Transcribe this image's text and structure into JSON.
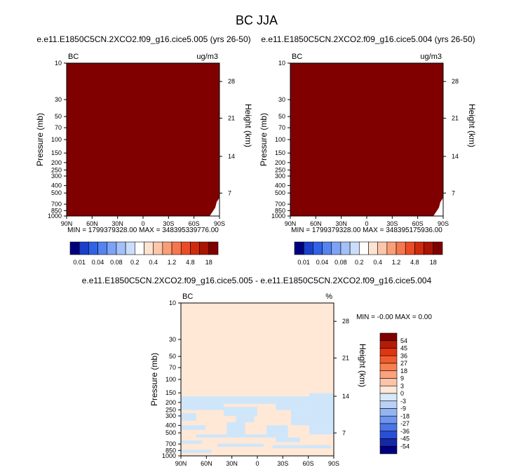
{
  "figure_title": "BC JJA",
  "colors": {
    "dark_red": "#800000",
    "diff_fill": "#FFE8D6",
    "diff_blue": "#CFE6FA",
    "axis": "#000000",
    "page_bg": "#ffffff"
  },
  "chart_data": [
    {
      "type": "heatmap",
      "title": "e.e11.E1850C5CN.2XCO2.f09_g16.cice5.005 (yrs 26-50)",
      "left_label": "BC",
      "right_label": "ug/m3",
      "ylabel": "Pressure (mb)",
      "y2label": "Height (km)",
      "x_ticks": [
        "90N",
        "60N",
        "30N",
        "0",
        "30S",
        "60S",
        "90S"
      ],
      "y_ticks": [
        "10",
        "30",
        "50",
        "70",
        "100",
        "150",
        "200",
        "250",
        "300",
        "400",
        "500",
        "700",
        "850",
        "1000"
      ],
      "height_ticks": [
        "28",
        "21",
        "14",
        "7"
      ],
      "min_max_text": "MIN = 1799379328.00   MAX = 348395339776.00",
      "field": "uniform dark red (all values above 18)"
    },
    {
      "type": "heatmap",
      "title": "e.e11.E1850C5CN.2XCO2.f09_g16.cice5.004 (yrs 26-50)",
      "left_label": "BC",
      "right_label": "ug/m3",
      "ylabel": "Pressure (mb)",
      "y2label": "Height (km)",
      "x_ticks": [
        "90N",
        "60N",
        "30N",
        "0",
        "30S",
        "60S",
        "90S"
      ],
      "y_ticks": [
        "10",
        "30",
        "50",
        "70",
        "100",
        "150",
        "200",
        "250",
        "300",
        "400",
        "500",
        "700",
        "850",
        "1000"
      ],
      "height_ticks": [
        "28",
        "21",
        "14",
        "7"
      ],
      "min_max_text": "MIN = 1799379328.00   MAX = 348395175936.00",
      "field": "uniform dark red (all values above 18)"
    },
    {
      "type": "heatmap",
      "title": "e.e11.E1850C5CN.2XCO2.f09_g16.cice5.005 - e.e11.E1850C5CN.2XCO2.f09_g16.cice5.004",
      "left_label": "BC",
      "right_label": "%",
      "ylabel": "Pressure (mb)",
      "y2label": "Height (km)",
      "x_ticks": [
        "90N",
        "60N",
        "30N",
        "0",
        "30S",
        "60S",
        "90S"
      ],
      "y_ticks": [
        "10",
        "30",
        "50",
        "70",
        "100",
        "150",
        "200",
        "250",
        "300",
        "400",
        "500",
        "700",
        "850",
        "1000"
      ],
      "height_ticks": [
        "28",
        "21",
        "14",
        "7"
      ],
      "min_max_text": "MIN = -0.00   MAX =   0.00",
      "field": "0 to 3 above ~150 mb; mixture of 0 to 3 and -3 to 0 below ~150 mb"
    }
  ],
  "colorbar_top": {
    "labels": [
      "0.01",
      "0.04",
      "0.08",
      "0.2",
      "0.4",
      "1.2",
      "4.8",
      "18"
    ],
    "colors": [
      "#00007F",
      "#1A3FC9",
      "#2F62E6",
      "#5583F0",
      "#7CA3F4",
      "#A3C1F7",
      "#CADDFB",
      "#FFFFFF",
      "#FFE3D2",
      "#FCC6A8",
      "#FA9E78",
      "#F5774F",
      "#EB4C28",
      "#CF2A0E",
      "#A91404",
      "#7F0000"
    ]
  },
  "colorbar_diff": {
    "labels": [
      "54",
      "45",
      "36",
      "27",
      "18",
      "9",
      "3",
      "0",
      "-3",
      "-9",
      "-18",
      "-27",
      "-36",
      "-45",
      "-54"
    ],
    "colors": [
      "#7F0000",
      "#B51C06",
      "#E0350F",
      "#F25B2E",
      "#F88050",
      "#FBA27E",
      "#FCC3A7",
      "#FFE6D5",
      "#D7E9FB",
      "#B8D2F7",
      "#93B5F3",
      "#6E96EF",
      "#4A74E8",
      "#2A4FD7",
      "#1528A6",
      "#00007F"
    ]
  }
}
